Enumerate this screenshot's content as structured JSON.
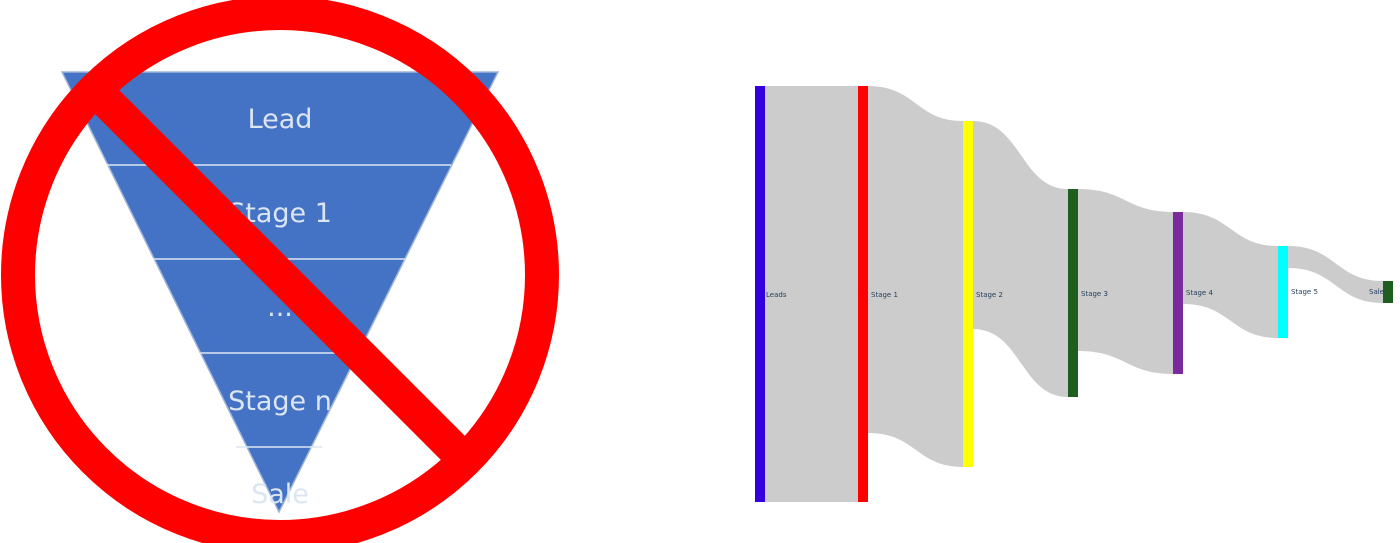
{
  "funnel": {
    "fill_color": "#4472c4",
    "divider_color": "#dce6f2",
    "stages": [
      {
        "label": "Lead"
      },
      {
        "label": "Stage 1"
      },
      {
        "label": "..."
      },
      {
        "label": "Stage n"
      },
      {
        "label": "Sale"
      }
    ]
  },
  "prohibition_sign": {
    "icon": "prohibition-icon",
    "color": "#ff0000"
  },
  "sankey": {
    "link_color": "#cccccc",
    "nodes": [
      {
        "label": "Leads",
        "color": "#3300dd"
      },
      {
        "label": "Stage 1",
        "color": "#ff0000"
      },
      {
        "label": "Stage 2",
        "color": "#ffff00"
      },
      {
        "label": "Stage 3",
        "color": "#1e5e1e"
      },
      {
        "label": "Stage 4",
        "color": "#7a2a9a"
      },
      {
        "label": "Stage 5",
        "color": "#00ffff"
      },
      {
        "label": "Sale",
        "color": "#1e5e1e"
      }
    ]
  }
}
